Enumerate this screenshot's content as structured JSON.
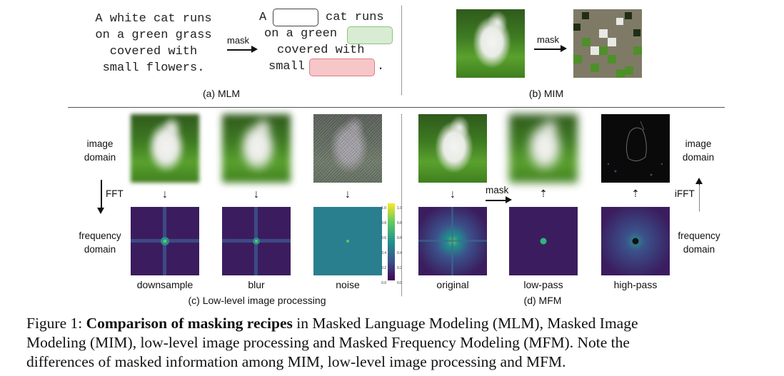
{
  "mlm": {
    "original_lines": [
      "A white cat runs",
      "on a green grass",
      "covered with",
      "small flowers."
    ],
    "mask_label": "mask",
    "masked_line1_prefix": "A",
    "masked_line1_suffix": "cat runs",
    "masked_line2_prefix": "on a green",
    "masked_line3": "covered with",
    "masked_line4_prefix": "small",
    "masked_line4_suffix": ".",
    "label": "(a) MLM"
  },
  "mim": {
    "mask_label": "mask",
    "label": "(b) MIM"
  },
  "low_level": {
    "image_domain": [
      "image",
      "domain"
    ],
    "frequency_domain": [
      "frequency",
      "domain"
    ],
    "fft_label": "FFT",
    "items": [
      "downsample",
      "blur",
      "noise"
    ],
    "label": "(c) Low-level image processing"
  },
  "colorbar": {
    "ticks": [
      "1.0",
      "0.8",
      "0.6",
      "0.4",
      "0.2",
      "0.0"
    ]
  },
  "mfm": {
    "mask_label": "mask",
    "ifft_label": "iFFT",
    "image_domain": [
      "image",
      "domain"
    ],
    "frequency_domain": [
      "frequency",
      "domain"
    ],
    "items": [
      "original",
      "low-pass",
      "high-pass"
    ],
    "label": "(d) MFM"
  },
  "caption": {
    "prefix": "Figure 1: ",
    "bold": "Comparison of masking recipes",
    "rest_line1": " in Masked Language Modeling (MLM), Masked Image",
    "line2": "Modeling (MIM), low-level image processing and Masked Frequency Modeling (MFM). Note the",
    "line3": "differences of masked information among MIM, low-level image processing and MFM."
  },
  "colors": {
    "mask_green_fill": "#d8ecd3",
    "mask_green_border": "#8cc47f",
    "mask_red_fill": "#f6c6c8",
    "mask_red_border": "#e07d82",
    "viridis_dark": "#3b1d5f",
    "viridis_teal": "#2a8c8c"
  }
}
